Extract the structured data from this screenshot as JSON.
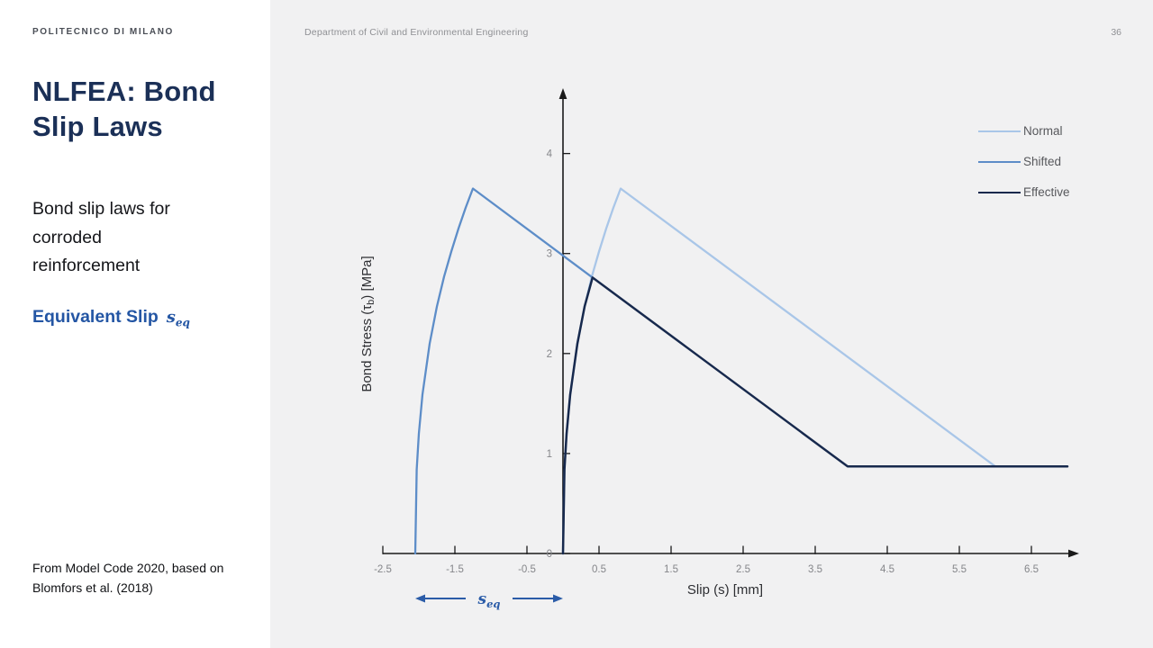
{
  "slide": {
    "brand": "POLITECNICO DI MILANO",
    "header": "Department of Civil and Environmental Engineering",
    "page_number": "36",
    "title": "NLFEA: Bond Slip Laws",
    "subtitle": "Bond slip laws for corroded reinforcement",
    "accent_heading": "Equivalent Slip",
    "accent_symbol_main": "s",
    "accent_symbol_sub": "eq",
    "footnote_line1": "From Model Code 2020, based on",
    "footnote_line2": "Blomfors et al. (2018)"
  },
  "colors": {
    "title_navy": "#1b3057",
    "accent_blue": "#2456a4",
    "content_bg": "#f1f1f2",
    "axis": "#1a1a1a",
    "normal_line": "#a9c6e8",
    "shifted_line": "#5d8dc8",
    "effective_line": "#17294d",
    "annotation_blue": "#2b5ca8"
  },
  "chart_data": {
    "type": "line",
    "title": "",
    "xlabel": "Slip (s) [mm]",
    "ylabel": "Bond Stress (τb) [MPa]",
    "ylabel_parts": {
      "pre": "Bond Stress (τ",
      "sub": "b",
      "post": ") [MPa]"
    },
    "xlim": [
      -2.5,
      7.05
    ],
    "ylim": [
      0,
      4.55
    ],
    "grid": false,
    "legend_position": "top-right",
    "x_ticks": [
      -2.5,
      -1.5,
      -0.5,
      0.5,
      1.5,
      2.5,
      3.5,
      4.5,
      5.5,
      6.5
    ],
    "x_tick_labels": [
      "-2.5",
      "-1.5",
      "-0.5",
      "0.5",
      "1.5",
      "2.5",
      "3.5",
      "4.5",
      "5.5",
      "6.5"
    ],
    "y_ticks": [
      0,
      1,
      2,
      3,
      4
    ],
    "y_tick_labels": [
      "0",
      "1",
      "2",
      "3",
      "4"
    ],
    "series": [
      {
        "name": "Normal",
        "color": "#a9c6e8",
        "width": 2.3,
        "points": [
          [
            0,
            0
          ],
          [
            0.02,
            0.84
          ],
          [
            0.05,
            1.2
          ],
          [
            0.1,
            1.59
          ],
          [
            0.2,
            2.1
          ],
          [
            0.3,
            2.47
          ],
          [
            0.4,
            2.77
          ],
          [
            0.5,
            3.02
          ],
          [
            0.6,
            3.25
          ],
          [
            0.7,
            3.46
          ],
          [
            0.8,
            3.65
          ],
          [
            6.0,
            0.87
          ],
          [
            7.0,
            0.87
          ]
        ]
      },
      {
        "name": "Shifted",
        "color": "#5d8dc8",
        "width": 2.3,
        "points": [
          [
            -2.05,
            0
          ],
          [
            -2.03,
            0.84
          ],
          [
            -2.0,
            1.2
          ],
          [
            -1.95,
            1.59
          ],
          [
            -1.85,
            2.1
          ],
          [
            -1.75,
            2.47
          ],
          [
            -1.65,
            2.77
          ],
          [
            -1.55,
            3.02
          ],
          [
            -1.45,
            3.25
          ],
          [
            -1.35,
            3.46
          ],
          [
            -1.25,
            3.65
          ],
          [
            0.41,
            2.76
          ]
        ]
      },
      {
        "name": "Effective",
        "color": "#17294d",
        "width": 2.5,
        "points": [
          [
            0,
            0
          ],
          [
            0.02,
            0.84
          ],
          [
            0.05,
            1.2
          ],
          [
            0.1,
            1.59
          ],
          [
            0.2,
            2.1
          ],
          [
            0.3,
            2.47
          ],
          [
            0.41,
            2.76
          ],
          [
            3.95,
            0.87
          ],
          [
            7.0,
            0.87
          ]
        ]
      }
    ],
    "annotation": {
      "main": "s",
      "sub": "eq",
      "from_x": -2.05,
      "to_x": 0.0,
      "color": "#2b5ca8"
    }
  }
}
